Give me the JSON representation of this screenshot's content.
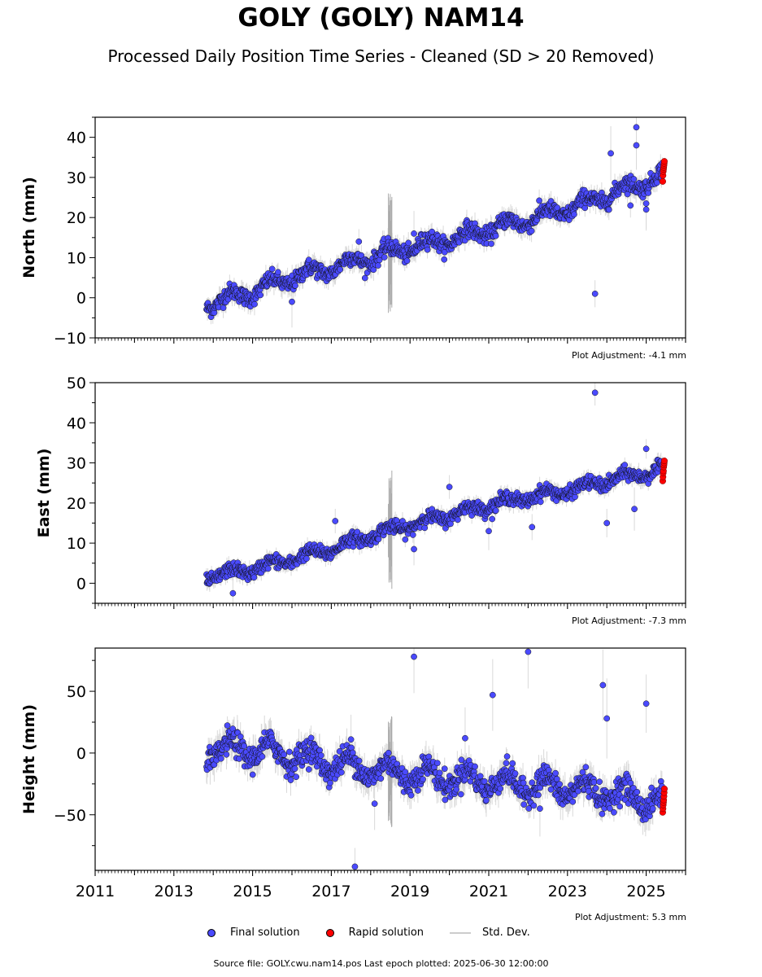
{
  "title": "GOLY (GOLY) NAM14",
  "subtitle": "Processed Daily Position Time Series - Cleaned (SD > 20 Removed)",
  "legend": {
    "final": "Final solution",
    "rapid": "Rapid solution",
    "std": "Std. Dev."
  },
  "footer": "Source file: GOLY.cwu.nam14.pos  Last epoch plotted: 2025-06-30 12:00:00",
  "colors": {
    "final": "#4a4aff",
    "rapid": "#ff0000",
    "std": "#bbbbbb"
  },
  "chart_data": [
    {
      "type": "scatter",
      "ylabel": "North (mm)",
      "xlim": [
        2011,
        2026
      ],
      "ylim": [
        -10,
        45
      ],
      "yticks": [
        -10,
        0,
        10,
        20,
        30,
        40
      ],
      "ytick_labels": [
        "−10",
        "0",
        "10",
        "20",
        "30",
        "40"
      ],
      "adjustment": "Plot Adjustment: -4.1 mm",
      "data_start": 2013.83,
      "data_end": 2025.45,
      "rapid_start": 2025.42,
      "trend": [
        [
          2013.83,
          -1.5
        ],
        [
          2015.0,
          1.5
        ],
        [
          2016.0,
          5.0
        ],
        [
          2017.0,
          7.5
        ],
        [
          2018.0,
          10.0
        ],
        [
          2019.0,
          12.5
        ],
        [
          2020.0,
          14.5
        ],
        [
          2021.0,
          17.0
        ],
        [
          2022.0,
          19.5
        ],
        [
          2023.0,
          22.0
        ],
        [
          2024.0,
          25.5
        ],
        [
          2025.0,
          29.0
        ],
        [
          2025.5,
          31.0
        ]
      ],
      "seasonal_amp": 1.5,
      "noise": 1.0,
      "rapid_values": [
        29,
        30.5,
        31.5,
        32,
        32.5,
        33,
        33.5,
        34
      ],
      "outliers": [
        [
          2023.7,
          1
        ],
        [
          2024.1,
          36
        ],
        [
          2024.75,
          42.5
        ],
        [
          2024.75,
          38
        ],
        [
          2025.0,
          22
        ],
        [
          2025.0,
          23.5
        ],
        [
          2024.6,
          23
        ],
        [
          2019.1,
          16
        ],
        [
          2017.7,
          14
        ],
        [
          2016.0,
          -1
        ]
      ]
    },
    {
      "type": "scatter",
      "ylabel": "East (mm)",
      "xlim": [
        2011,
        2026
      ],
      "ylim": [
        -5,
        50
      ],
      "yticks": [
        0,
        10,
        20,
        30,
        40,
        50
      ],
      "ytick_labels": [
        "0",
        "10",
        "20",
        "30",
        "40",
        "50"
      ],
      "adjustment": "Plot Adjustment: -7.3 mm",
      "data_start": 2013.83,
      "data_end": 2025.45,
      "rapid_start": 2025.42,
      "trend": [
        [
          2013.83,
          1.5
        ],
        [
          2015.0,
          3.5
        ],
        [
          2016.0,
          6.0
        ],
        [
          2017.0,
          8.5
        ],
        [
          2018.0,
          12.0
        ],
        [
          2019.0,
          14.5
        ],
        [
          2020.0,
          17.0
        ],
        [
          2021.0,
          19.5
        ],
        [
          2022.0,
          21.5
        ],
        [
          2023.0,
          23.0
        ],
        [
          2024.0,
          25.5
        ],
        [
          2025.0,
          27.5
        ],
        [
          2025.5,
          28.5
        ]
      ],
      "seasonal_amp": 1.0,
      "noise": 0.8,
      "rapid_values": [
        25.5,
        26.5,
        27.5,
        28,
        29,
        29.5,
        30,
        30.5
      ],
      "outliers": [
        [
          2023.7,
          47.5
        ],
        [
          2024.0,
          15
        ],
        [
          2017.1,
          15.5
        ],
        [
          2019.1,
          8.5
        ],
        [
          2021.0,
          13
        ],
        [
          2022.1,
          14
        ],
        [
          2014.5,
          -2.5
        ],
        [
          2020.0,
          24
        ],
        [
          2024.7,
          18.5
        ],
        [
          2025.0,
          33.5
        ]
      ]
    },
    {
      "type": "scatter",
      "ylabel": "Height (mm)",
      "xlim": [
        2011,
        2026
      ],
      "ylim": [
        -95,
        85
      ],
      "yticks": [
        -50,
        0,
        50
      ],
      "ytick_labels": [
        "−50",
        "0",
        "50"
      ],
      "adjustment": "Plot Adjustment: 5.3 mm",
      "data_start": 2013.83,
      "data_end": 2025.45,
      "rapid_start": 2025.42,
      "trend": [
        [
          2013.83,
          2
        ],
        [
          2015.0,
          3
        ],
        [
          2016.0,
          -2
        ],
        [
          2017.0,
          -8
        ],
        [
          2018.0,
          -13
        ],
        [
          2019.0,
          -17
        ],
        [
          2020.0,
          -20
        ],
        [
          2021.0,
          -23
        ],
        [
          2022.0,
          -26
        ],
        [
          2023.0,
          -28
        ],
        [
          2024.0,
          -32
        ],
        [
          2025.0,
          -38
        ],
        [
          2025.5,
          -40
        ]
      ],
      "seasonal_amp": 8,
      "noise": 5,
      "rapid_values": [
        -48,
        -45,
        -42,
        -40,
        -38,
        -35,
        -32,
        -29
      ],
      "outliers": [
        [
          2017.6,
          -92
        ],
        [
          2019.1,
          78
        ],
        [
          2021.1,
          47
        ],
        [
          2022.0,
          82
        ],
        [
          2023.9,
          55
        ],
        [
          2024.0,
          28
        ],
        [
          2025.0,
          40
        ],
        [
          2020.4,
          12
        ],
        [
          2018.1,
          -41
        ],
        [
          2022.3,
          -45
        ],
        [
          2017.5,
          11
        ]
      ]
    }
  ],
  "xticks": [
    2011,
    2013,
    2015,
    2017,
    2019,
    2021,
    2023,
    2025
  ]
}
